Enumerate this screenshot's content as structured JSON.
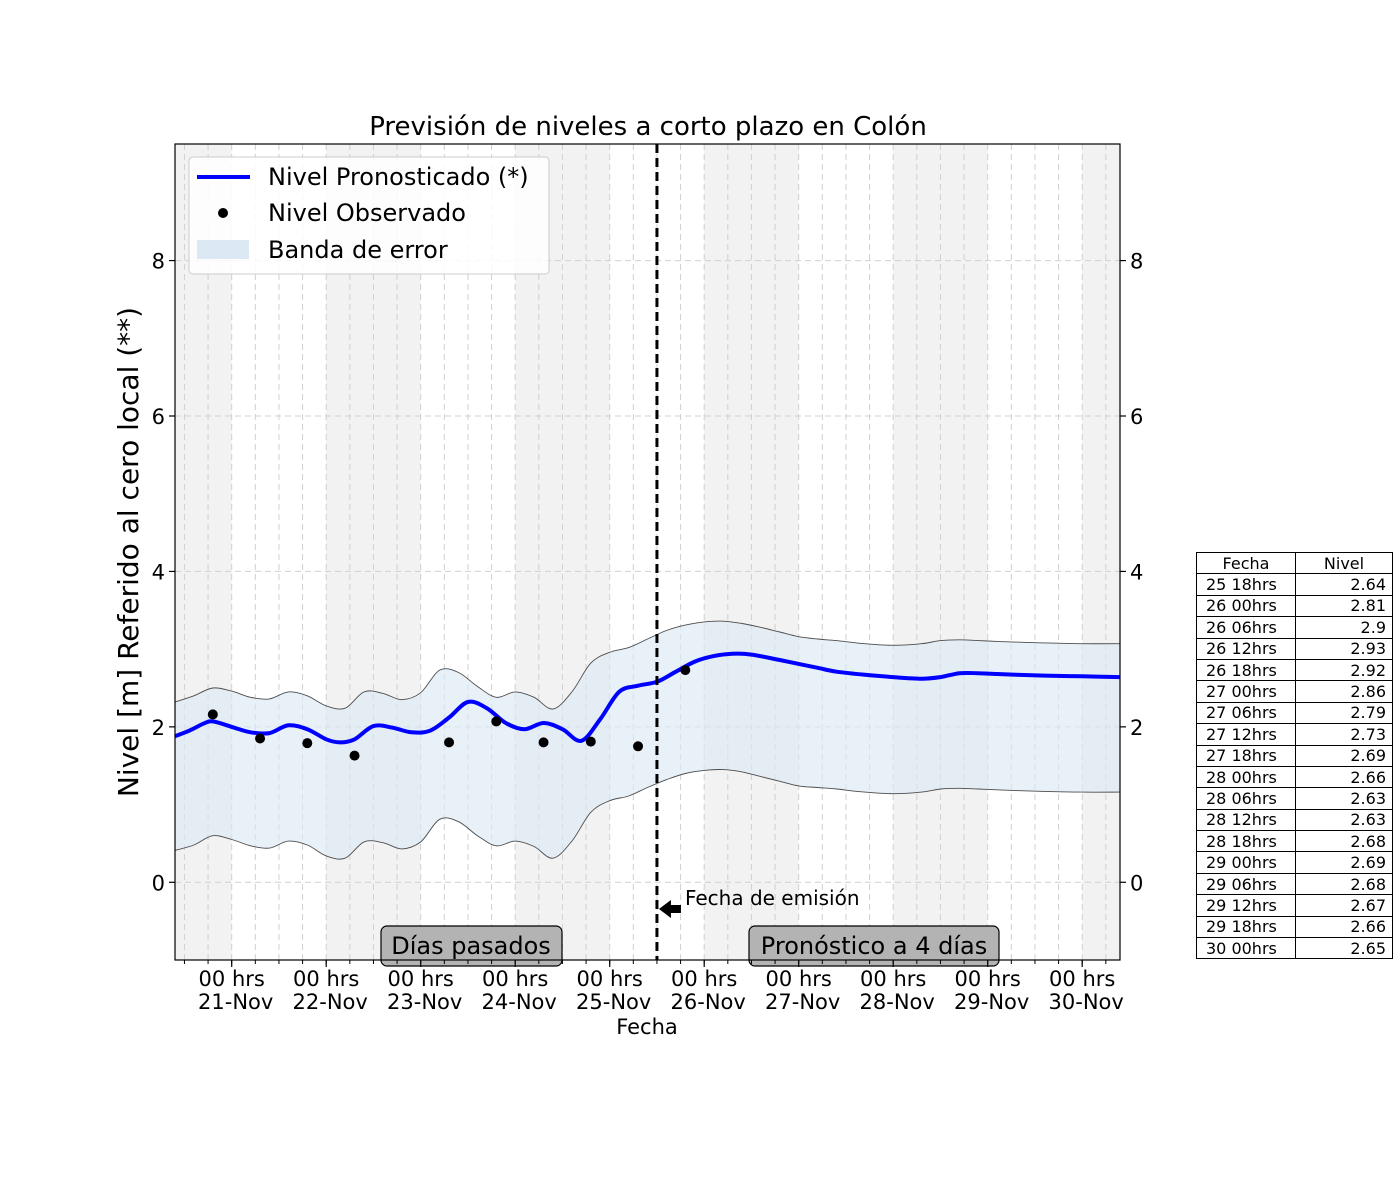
{
  "chart_data": {
    "type": "line",
    "title": "Previsión de niveles a corto plazo en Colón",
    "xlabel": "Fecha",
    "ylabel": "Nivel [m] Referido al cero local (**)",
    "ylim": [
      -1.0,
      9.5
    ],
    "yticks": [
      0,
      2,
      4,
      6,
      8
    ],
    "x_range_hours": [
      -92,
      108
    ],
    "x_unit": "hours relative to 26-Nov 00hrs",
    "xticks": [
      {
        "h": -80,
        "line1": "00 hrs",
        "line2": "21-Nov"
      },
      {
        "h": -60,
        "line1": "00 hrs",
        "line2": "22-Nov"
      },
      {
        "h": -40,
        "line1": "00 hrs",
        "line2": "23-Nov"
      },
      {
        "h": -20,
        "line1": "00 hrs",
        "line2": "24-Nov"
      },
      {
        "h": 0,
        "line1": "00 hrs",
        "line2": "25-Nov"
      },
      {
        "h": 20,
        "line1": "00 hrs",
        "line2": "26-Nov"
      },
      {
        "h": 40,
        "line1": "00 hrs",
        "line2": "27-Nov"
      },
      {
        "h": 60,
        "line1": "00 hrs",
        "line2": "28-Nov"
      },
      {
        "h": 80,
        "line1": "00 hrs",
        "line2": "29-Nov"
      },
      {
        "h": 100,
        "line1": "00 hrs",
        "line2": "30-Nov"
      }
    ],
    "grid": true,
    "legend_position": "upper-left",
    "emission_hour": 10,
    "forecast_start_hour": 20,
    "series": [
      {
        "name": "Nivel Pronosticado (*)",
        "color": "#0000ff",
        "x": [
          -92,
          -89,
          -86,
          -84,
          -80,
          -76,
          -72,
          -68,
          -64,
          -60,
          -57,
          -54,
          -50,
          -46,
          -42,
          -38,
          -34,
          -30,
          -26,
          -22,
          -18,
          -14,
          -10,
          -6,
          -2,
          2,
          6,
          10,
          14,
          18,
          22,
          26,
          30,
          36,
          40,
          44,
          48,
          54,
          60,
          66,
          70,
          74,
          78,
          82,
          86,
          92,
          100,
          108
        ],
        "y": [
          1.88,
          1.95,
          2.04,
          2.07,
          2.0,
          1.93,
          1.92,
          2.02,
          1.97,
          1.84,
          1.8,
          1.84,
          2.01,
          1.99,
          1.93,
          1.95,
          2.12,
          2.32,
          2.24,
          2.05,
          1.97,
          2.05,
          1.97,
          1.82,
          2.1,
          2.45,
          2.53,
          2.58,
          2.71,
          2.84,
          2.91,
          2.94,
          2.93,
          2.86,
          2.81,
          2.76,
          2.71,
          2.67,
          2.64,
          2.62,
          2.64,
          2.69,
          2.69,
          2.68,
          2.67,
          2.66,
          2.65,
          2.64
        ]
      },
      {
        "name": "Nivel Observado",
        "color": "#000000",
        "x": [
          -84,
          -74,
          -64,
          -54,
          -34,
          -24,
          -14,
          -4,
          6,
          16
        ],
        "y": [
          2.16,
          1.85,
          1.79,
          1.63,
          1.8,
          2.07,
          1.8,
          1.81,
          1.75,
          2.73
        ]
      }
    ],
    "band": {
      "name": "Banda de error",
      "color": "#dce8f4",
      "x": [
        -92,
        -88,
        -84,
        -80,
        -76,
        -72,
        -68,
        -64,
        -60,
        -56,
        -52,
        -48,
        -44,
        -40,
        -36,
        -32,
        -28,
        -24,
        -20,
        -16,
        -12,
        -8,
        -4,
        0,
        4,
        8,
        12,
        16,
        20,
        24,
        28,
        32,
        36,
        40,
        44,
        48,
        54,
        60,
        66,
        70,
        74,
        78,
        82,
        86,
        92,
        100,
        108
      ],
      "upper": [
        2.32,
        2.4,
        2.5,
        2.46,
        2.38,
        2.36,
        2.45,
        2.4,
        2.27,
        2.24,
        2.45,
        2.43,
        2.35,
        2.44,
        2.73,
        2.7,
        2.52,
        2.38,
        2.45,
        2.38,
        2.23,
        2.45,
        2.82,
        2.96,
        3.02,
        3.13,
        3.24,
        3.31,
        3.35,
        3.36,
        3.33,
        3.28,
        3.22,
        3.16,
        3.13,
        3.11,
        3.07,
        3.05,
        3.07,
        3.11,
        3.12,
        3.11,
        3.1,
        3.09,
        3.08,
        3.07,
        3.07
      ],
      "lower": [
        0.41,
        0.48,
        0.6,
        0.55,
        0.47,
        0.44,
        0.53,
        0.48,
        0.34,
        0.31,
        0.52,
        0.51,
        0.43,
        0.52,
        0.81,
        0.78,
        0.6,
        0.47,
        0.53,
        0.46,
        0.31,
        0.53,
        0.9,
        1.05,
        1.11,
        1.22,
        1.32,
        1.4,
        1.44,
        1.45,
        1.42,
        1.36,
        1.3,
        1.24,
        1.22,
        1.2,
        1.16,
        1.14,
        1.16,
        1.2,
        1.21,
        1.2,
        1.19,
        1.18,
        1.17,
        1.16,
        1.16
      ]
    },
    "annotations": {
      "emission_label": "Fecha de emisión",
      "past_label": "Días pasados",
      "forecast_label": "Pronóstico a 4 días"
    },
    "table": {
      "headers": [
        "Fecha",
        "Nivel"
      ],
      "rows": [
        [
          "25 18hrs",
          "2.64"
        ],
        [
          "26 00hrs",
          "2.81"
        ],
        [
          "26 06hrs",
          "2.9"
        ],
        [
          "26 12hrs",
          "2.93"
        ],
        [
          "26 18hrs",
          "2.92"
        ],
        [
          "27 00hrs",
          "2.86"
        ],
        [
          "27 06hrs",
          "2.79"
        ],
        [
          "27 12hrs",
          "2.73"
        ],
        [
          "27 18hrs",
          "2.69"
        ],
        [
          "28 00hrs",
          "2.66"
        ],
        [
          "28 06hrs",
          "2.63"
        ],
        [
          "28 12hrs",
          "2.63"
        ],
        [
          "28 18hrs",
          "2.68"
        ],
        [
          "29 00hrs",
          "2.69"
        ],
        [
          "29 06hrs",
          "2.68"
        ],
        [
          "29 12hrs",
          "2.67"
        ],
        [
          "29 18hrs",
          "2.66"
        ],
        [
          "30 00hrs",
          "2.65"
        ]
      ]
    }
  }
}
